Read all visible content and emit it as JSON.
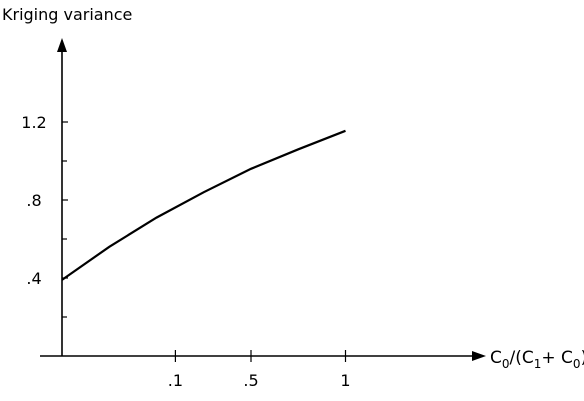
{
  "chart_data": {
    "type": "line",
    "ylabel": "Kriging variance",
    "xlabel": {
      "base": "C",
      "sub0": "0",
      "mid": "/(C",
      "sub1": "1",
      "plus": "+ C",
      "sub2": "0",
      "close": ")"
    },
    "x_ticks": [
      {
        "value": 0.1,
        "label": ".1"
      },
      {
        "value": 0.5,
        "label": ".5"
      },
      {
        "value": 1.0,
        "label": "1"
      }
    ],
    "y_ticks": [
      {
        "value": 0.4,
        "label": ".4"
      },
      {
        "value": 0.8,
        "label": ".8"
      },
      {
        "value": 1.2,
        "label": "1.2"
      }
    ],
    "y_minor_ticks": [
      0.2,
      0.6,
      1.0
    ],
    "xlim": [
      -0.5,
      1.5
    ],
    "ylim": [
      0.0,
      1.6
    ],
    "series": [
      {
        "x": [
          -0.5,
          -0.25,
          0.0,
          0.25,
          0.5,
          0.75,
          1.0
        ],
        "y": [
          0.39,
          0.56,
          0.71,
          0.84,
          0.96,
          1.06,
          1.155
        ]
      }
    ]
  }
}
